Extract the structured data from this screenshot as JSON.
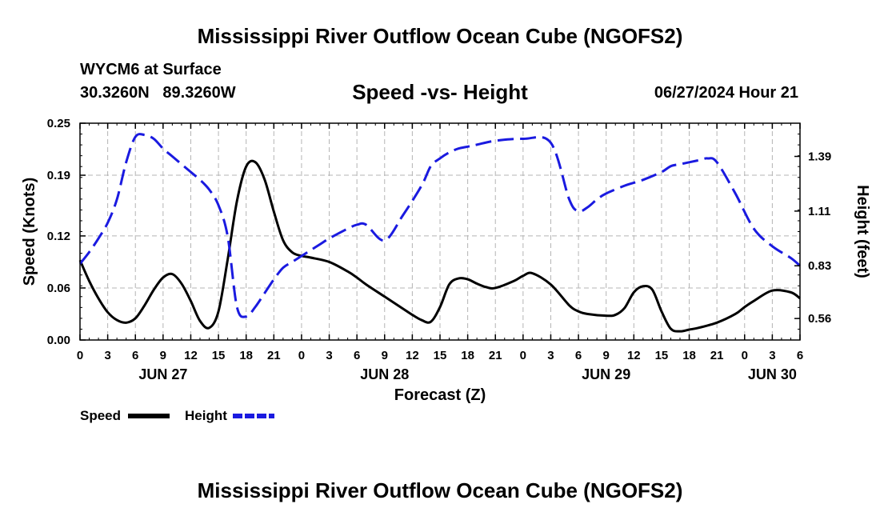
{
  "header": {
    "title": "Mississippi River Outflow Ocean Cube (NGOFS2)",
    "station": "WYCM6 at Surface",
    "coords": "30.3260N   89.3260W",
    "chart_title": "Speed -vs- Height",
    "datetime": "06/27/2024 Hour 21"
  },
  "footer": {
    "title": "Mississippi River Outflow Ocean Cube (NGOFS2)"
  },
  "chart_data": {
    "type": "line",
    "xlabel": "Forecast (Z)",
    "ylabel": "Speed (Knots)",
    "y2label": "Height (feet)",
    "x_unit": "forecast hours from JUN 27 00Z",
    "xlim": [
      -3,
      75
    ],
    "x_tick_values": [
      -3,
      0,
      3,
      6,
      9,
      12,
      15,
      18,
      21,
      24,
      27,
      30,
      33,
      36,
      39,
      42,
      45,
      48,
      51,
      54,
      57,
      60,
      63,
      66,
      69,
      72,
      75
    ],
    "x_tick_labels": [
      "0",
      "3",
      "6",
      "9",
      "12",
      "15",
      "18",
      "21",
      "0",
      "3",
      "6",
      "9",
      "12",
      "15",
      "18",
      "21",
      "0",
      "3",
      "6",
      "9",
      "12",
      "15",
      "18",
      "21",
      "0",
      "3",
      "6"
    ],
    "date_labels": [
      {
        "label": "JUN 27",
        "x": 6
      },
      {
        "label": "JUN 28",
        "x": 30
      },
      {
        "label": "JUN 29",
        "x": 54
      },
      {
        "label": "JUN 30",
        "x": 72
      }
    ],
    "ylim": [
      0,
      0.25
    ],
    "y_tick_values": [
      0,
      0.06,
      0.12,
      0.19,
      0.25
    ],
    "y_tick_labels": [
      "0.00",
      "0.06",
      "0.12",
      "0.19",
      "0.25"
    ],
    "y2lim": [
      0.45,
      1.56
    ],
    "y2_tick_values": [
      0.56,
      0.83,
      1.11,
      1.39
    ],
    "y2_tick_labels": [
      "0.56",
      "0.83",
      "1.11",
      "1.39"
    ],
    "grid": true,
    "series": [
      {
        "name": "Speed",
        "axis": "left",
        "color": "#000000",
        "dash": "solid",
        "x": [
          -3,
          -2,
          -1,
          0,
          1,
          2,
          3,
          4,
          5,
          6,
          7,
          8,
          9,
          10,
          11,
          12,
          13,
          14,
          15,
          16,
          17,
          18,
          19,
          20,
          21,
          22,
          24,
          26,
          27,
          28,
          30,
          32,
          33,
          34,
          35,
          36,
          37,
          38,
          39,
          40,
          41,
          42,
          44,
          45,
          46,
          48,
          50,
          51,
          52,
          54,
          55,
          56,
          57,
          58,
          59,
          60,
          61,
          62,
          63,
          64,
          66,
          68,
          69,
          70,
          72,
          74,
          75
        ],
        "values": [
          0.092,
          0.068,
          0.048,
          0.032,
          0.023,
          0.02,
          0.025,
          0.04,
          0.058,
          0.072,
          0.076,
          0.065,
          0.045,
          0.022,
          0.014,
          0.033,
          0.093,
          0.16,
          0.2,
          0.205,
          0.185,
          0.148,
          0.115,
          0.101,
          0.097,
          0.095,
          0.09,
          0.079,
          0.072,
          0.064,
          0.05,
          0.036,
          0.029,
          0.023,
          0.021,
          0.038,
          0.064,
          0.071,
          0.07,
          0.065,
          0.061,
          0.06,
          0.068,
          0.074,
          0.077,
          0.064,
          0.04,
          0.033,
          0.03,
          0.028,
          0.029,
          0.037,
          0.055,
          0.062,
          0.058,
          0.033,
          0.013,
          0.01,
          0.012,
          0.014,
          0.02,
          0.03,
          0.038,
          0.045,
          0.057,
          0.055,
          0.048
        ]
      },
      {
        "name": "Height",
        "axis": "right",
        "color": "#1a1ae0",
        "dash": "dashed",
        "x": [
          -3,
          -2,
          -1,
          0,
          1,
          2,
          3,
          4,
          5,
          6,
          7,
          8,
          9,
          10,
          11,
          12,
          13,
          14,
          15,
          16,
          17,
          18,
          19,
          20,
          21,
          22,
          23,
          24,
          26,
          27,
          28,
          30,
          32,
          34,
          35,
          36,
          37,
          38,
          39,
          40,
          42,
          45,
          48,
          50,
          51,
          52,
          53,
          54,
          56,
          58,
          60,
          61,
          62,
          63,
          64,
          65,
          66,
          68,
          70,
          72,
          74,
          75
        ],
        "values": [
          0.84,
          0.9,
          0.97,
          1.05,
          1.17,
          1.36,
          1.49,
          1.5,
          1.48,
          1.43,
          1.39,
          1.35,
          1.31,
          1.27,
          1.22,
          1.14,
          0.98,
          0.62,
          0.57,
          0.62,
          0.69,
          0.76,
          0.82,
          0.85,
          0.88,
          0.91,
          0.94,
          0.97,
          1.02,
          1.04,
          1.04,
          0.96,
          1.09,
          1.24,
          1.34,
          1.38,
          1.41,
          1.43,
          1.44,
          1.45,
          1.47,
          1.48,
          1.46,
          1.17,
          1.11,
          1.13,
          1.17,
          1.2,
          1.24,
          1.27,
          1.31,
          1.34,
          1.35,
          1.36,
          1.37,
          1.38,
          1.36,
          1.2,
          1.02,
          0.93,
          0.87,
          0.83
        ]
      }
    ],
    "legend": [
      {
        "label": "Speed",
        "color": "#000000",
        "dash": "solid"
      },
      {
        "label": "Height",
        "color": "#1a1ae0",
        "dash": "dashed"
      }
    ],
    "legend_position": "bottom-left"
  }
}
